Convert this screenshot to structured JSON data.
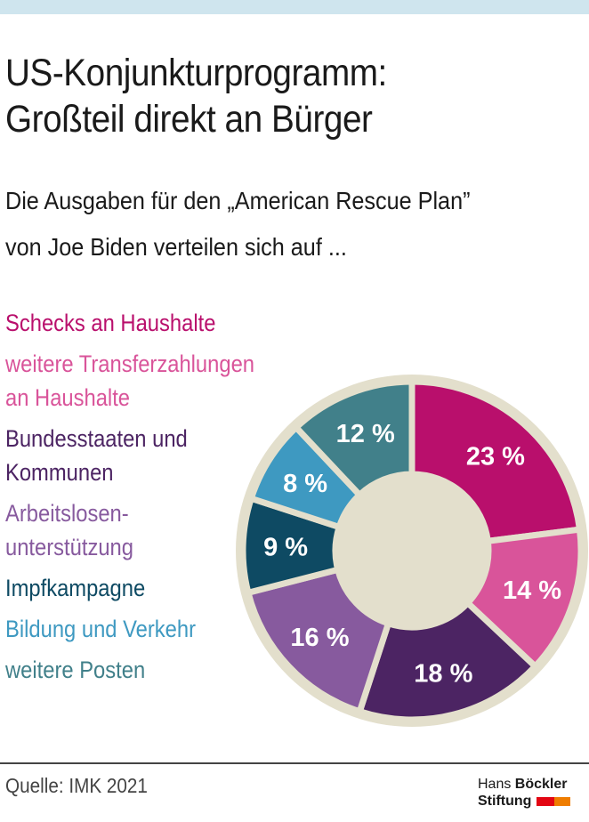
{
  "title": [
    "US-Konjunkturprogramm:",
    "Großteil direkt an Bürger"
  ],
  "subtitle": [
    "Die Ausgaben für den „American Rescue Plan”",
    "von Joe Biden verteilen sich auf ..."
  ],
  "source": "Quelle: IMK 2021",
  "logo": {
    "line1_a": "Hans ",
    "line1_b": "Böckler",
    "line2": "Stiftung"
  },
  "chart_data": {
    "type": "pie",
    "donut": true,
    "start": "top, clockwise",
    "legend_placement": "left",
    "categories": [
      "Schecks an Haushalte",
      "weitere Transferzahlungen\nan Haushalte",
      "Bundesstaaten und\nKommunen",
      "Arbeitslosen-\nunterstützung",
      "Impfkampagne",
      "Bildung und Verkehr",
      "weitere Posten"
    ],
    "values": [
      23,
      14,
      18,
      16,
      9,
      8,
      12
    ],
    "labels": [
      "23 %",
      "14 %",
      "18 %",
      "16 %",
      "9 %",
      "8 %",
      "12 %"
    ],
    "colors": [
      "#b90f6c",
      "#d9549a",
      "#4c2463",
      "#875a9e",
      "#0e4a63",
      "#3e99c1",
      "#41808a"
    ],
    "background_color": "#e3dfcc"
  }
}
